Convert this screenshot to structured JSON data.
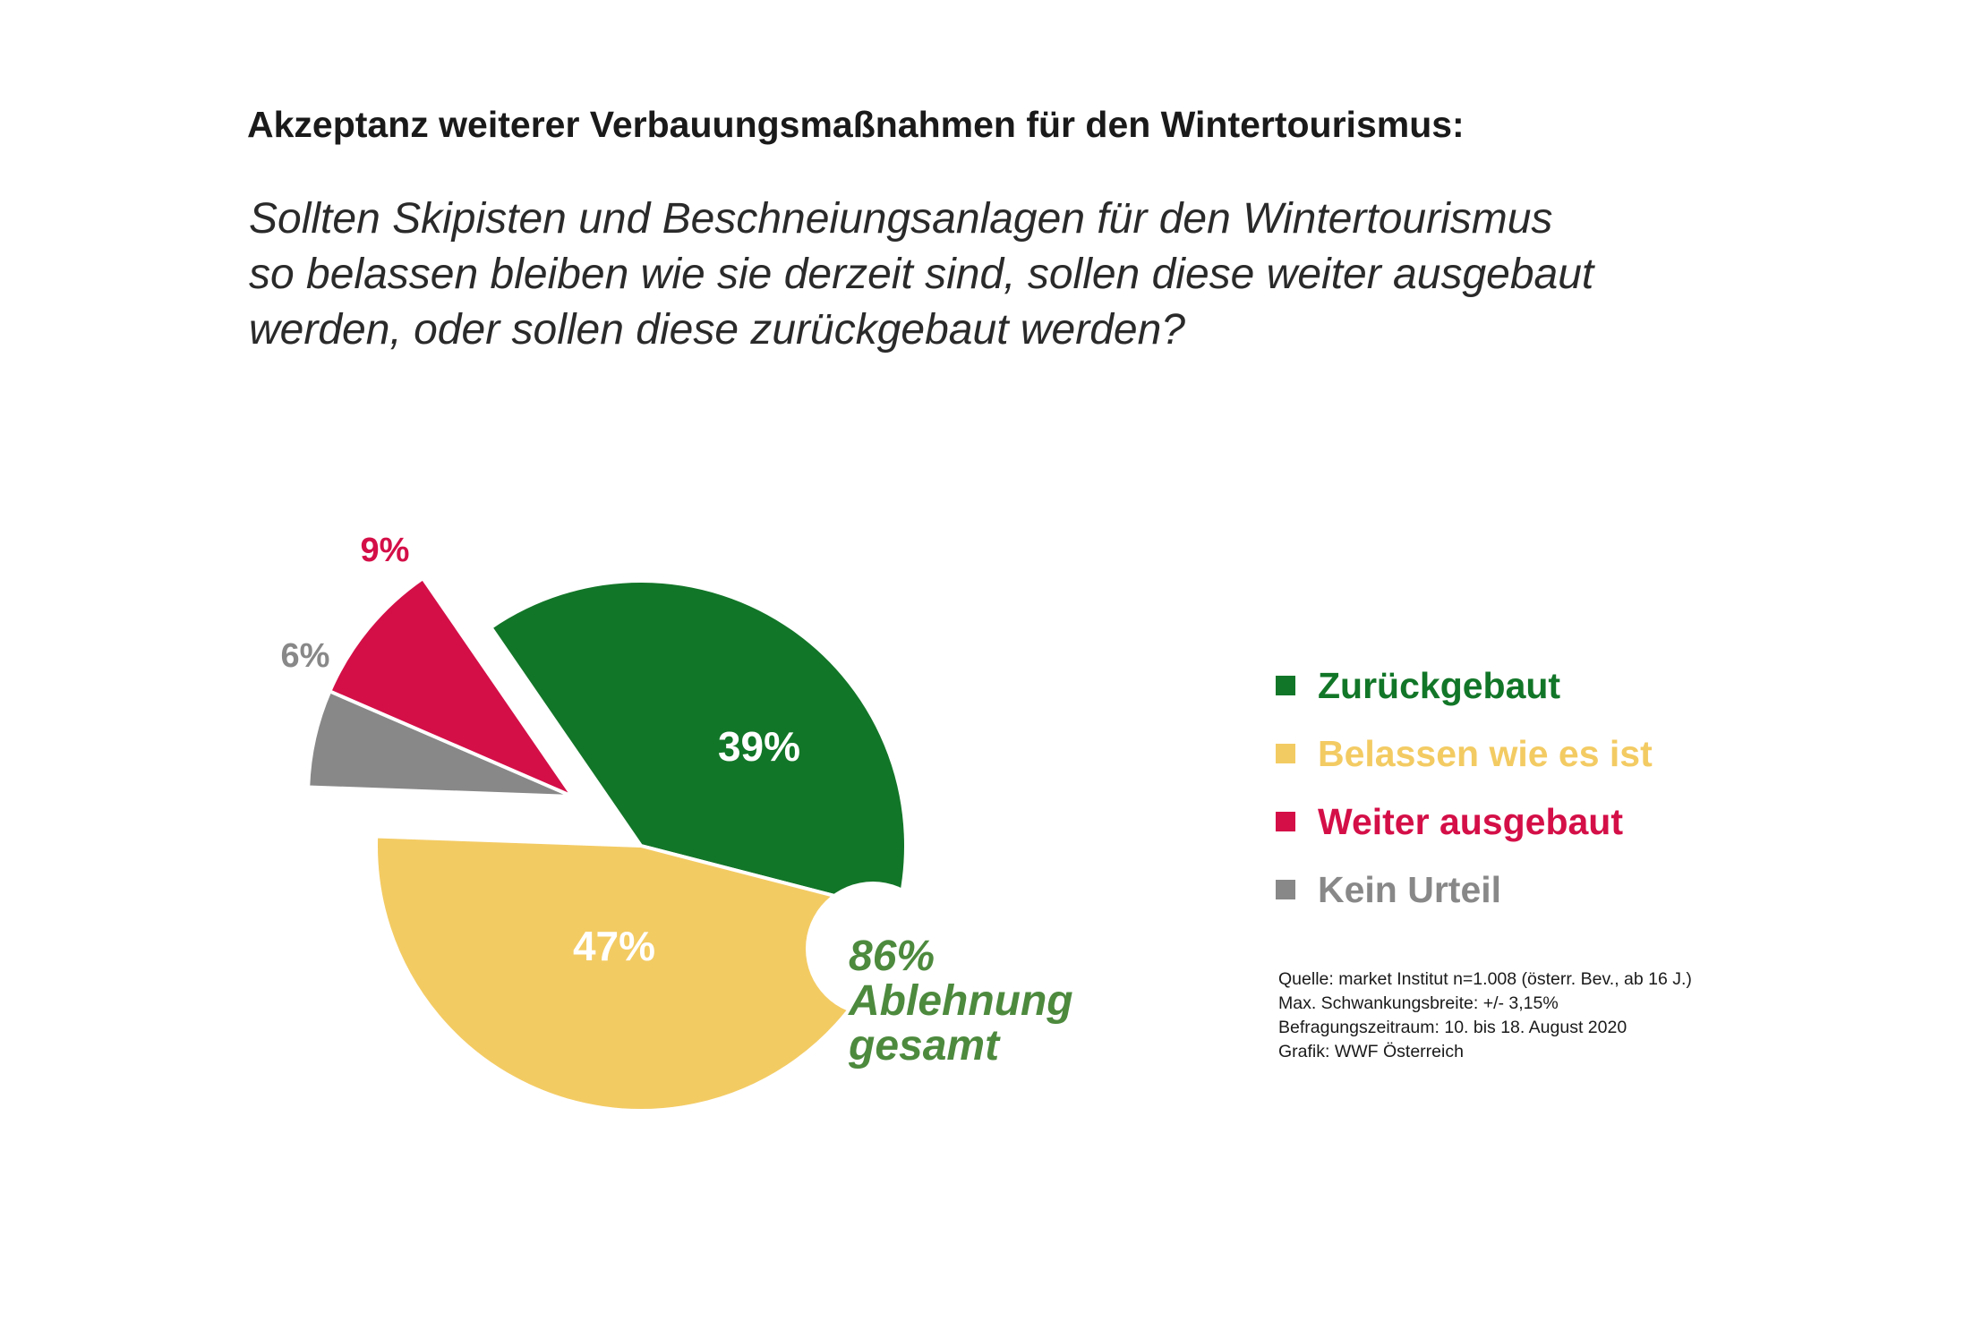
{
  "title": "Akzeptanz weiterer Verbauungsmaßnahmen für den Wintertourismus:",
  "question": [
    "Sollten Skipisten und Beschneiungsanlagen für den Wintertourismus",
    "so belassen bleiben wie sie derzeit sind, sollen diese weiter ausgebaut",
    "werden, oder sollen diese zurückgebaut werden?"
  ],
  "chart_data": {
    "type": "pie",
    "slices": [
      {
        "name": "Zurückgebaut",
        "value": 39,
        "label": "39%",
        "color": "#127628",
        "label_color": "#ffffff",
        "exploded": false
      },
      {
        "name": "Belassen wie es ist",
        "value": 47,
        "label": "47%",
        "color": "#f3cb63",
        "label_color": "#ffffff",
        "exploded": false
      },
      {
        "name": "Kein Urteil",
        "value": 6,
        "label": "6%",
        "color": "#888888",
        "label_color": "#888888",
        "exploded": true
      },
      {
        "name": "Weiter ausgebaut",
        "value": 9,
        "label": "9%",
        "color": "#d40f48",
        "label_color": "#d40f48",
        "exploded": true
      }
    ],
    "legend_position": "right",
    "callout": {
      "lines": [
        "86%",
        "Ablehnung",
        "gesamt"
      ],
      "color": "#4d8a3e"
    }
  },
  "legend": [
    {
      "label": "Zurückgebaut",
      "color": "#127628"
    },
    {
      "label": "Belassen wie es ist",
      "color": "#f3cb63"
    },
    {
      "label": "Weiter ausgebaut",
      "color": "#d40f48"
    },
    {
      "label": "Kein Urteil",
      "color": "#888888"
    }
  ],
  "source": [
    "Quelle: market Institut n=1.008 (österr. Bev., ab 16 J.)",
    "Max. Schwankungsbreite: +/- 3,15%",
    "Befragungszeitraum: 10. bis 18. August 2020",
    "Grafik: WWF Österreich"
  ]
}
